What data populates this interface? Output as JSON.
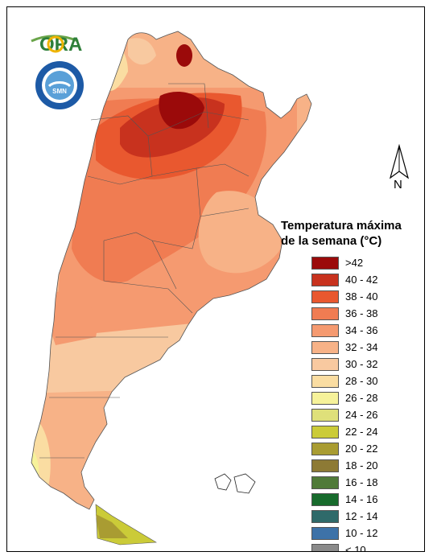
{
  "logos": {
    "ora": "ORA",
    "smn_ring": "SERVICIO METEOROLÓGICO NACIONAL ARGENTINA",
    "smn_mark": "SMN"
  },
  "north_arrow": {
    "label": "N"
  },
  "legend": {
    "title_line1": "Temperatura máxima",
    "title_line2": "de la semana (°C)",
    "items": [
      {
        "label": ">42",
        "color": "#9b0a0a"
      },
      {
        "label": "40 - 42",
        "color": "#c8321e"
      },
      {
        "label": "38 - 40",
        "color": "#e9582f"
      },
      {
        "label": "36 - 38",
        "color": "#f07c52"
      },
      {
        "label": "34 - 36",
        "color": "#f59a70"
      },
      {
        "label": "32 - 34",
        "color": "#f7b287"
      },
      {
        "label": "30 - 32",
        "color": "#f8c9a0"
      },
      {
        "label": "28 - 30",
        "color": "#fadda2"
      },
      {
        "label": "26 - 28",
        "color": "#f6f29a"
      },
      {
        "label": "24 - 26",
        "color": "#dfe07a"
      },
      {
        "label": "22 - 24",
        "color": "#cbcb38"
      },
      {
        "label": "20 - 22",
        "color": "#a99c32"
      },
      {
        "label": "18 - 20",
        "color": "#8d7a35"
      },
      {
        "label": "16 - 18",
        "color": "#4f7a38"
      },
      {
        "label": "14 - 16",
        "color": "#176b2c"
      },
      {
        "label": "12 - 14",
        "color": "#2f6a6a"
      },
      {
        "label": "10 - 12",
        "color": "#3d72a8"
      },
      {
        "label": "< 10",
        "color": "#8a8a8a"
      }
    ]
  }
}
